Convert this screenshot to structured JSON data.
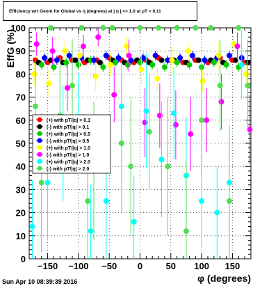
{
  "header": {
    "title": "Efficiency wrt Geom for Global vs η (degrees) at | η | <= 1.0 at pT > 0.11",
    "timestamp": "Sun Apr 10 08:39:39 2016"
  },
  "chart_data": {
    "type": "scatter",
    "title": "Efficiency wrt Geom for Global vs η (degrees) at | η | <= 1.0 at pT > 0.11",
    "xlabel": "φ (degrees)",
    "ylabel": "EffG (%)",
    "xlim": [
      -180,
      180
    ],
    "ylim": [
      0,
      100
    ],
    "xticks": [
      -150,
      -100,
      -50,
      0,
      50,
      100,
      150
    ],
    "yticks": [
      0,
      10,
      20,
      30,
      40,
      50,
      60,
      70,
      80,
      90,
      100
    ],
    "grid": true,
    "legend_position": "left-middle",
    "series": [
      {
        "name": "(+) with pT/|q| > 0.1",
        "color": "#ff0000",
        "marker": "circle",
        "x": [
          -170,
          -150,
          -130,
          -110,
          -90,
          -70,
          -50,
          -30,
          -10,
          10,
          30,
          50,
          70,
          90,
          110,
          130,
          150,
          170
        ],
        "y": [
          86,
          85,
          87,
          86,
          85,
          86,
          87,
          86,
          85,
          86,
          87,
          86,
          85,
          86,
          85,
          87,
          86,
          85
        ],
        "err": [
          1,
          1,
          1,
          1,
          1,
          1,
          1,
          1,
          1,
          1,
          1,
          1,
          1,
          1,
          1,
          1,
          1,
          1
        ]
      },
      {
        "name": "(-) with pT/|q| > 0.1",
        "color": "#000000",
        "marker": "circle",
        "x": [
          -165,
          -145,
          -125,
          -105,
          -85,
          -65,
          -45,
          -25,
          -5,
          15,
          35,
          55,
          75,
          95,
          115,
          135,
          155,
          175
        ],
        "y": [
          85,
          86,
          85,
          86,
          86,
          85,
          86,
          85,
          86,
          85,
          86,
          86,
          85,
          86,
          86,
          85,
          86,
          85
        ],
        "err": [
          1,
          1,
          1,
          1,
          1,
          1,
          1,
          1,
          1,
          1,
          1,
          1,
          1,
          1,
          1,
          1,
          1,
          1
        ]
      },
      {
        "name": "(+) with pT/|q| > 0.5",
        "color": "#00cc00",
        "marker": "circle",
        "x": [
          -160,
          -140,
          -120,
          -100,
          -80,
          -60,
          -40,
          -20,
          0,
          20,
          40,
          60,
          80,
          100,
          120,
          140,
          160
        ],
        "y": [
          84,
          83,
          85,
          84,
          86,
          83,
          85,
          84,
          85,
          84,
          83,
          85,
          84,
          83,
          85,
          84,
          83
        ],
        "err": [
          2,
          2,
          2,
          2,
          2,
          2,
          2,
          2,
          2,
          2,
          2,
          2,
          2,
          2,
          2,
          2,
          2
        ]
      },
      {
        "name": "(-) with pT/|q| > 0.5",
        "color": "#0000ff",
        "marker": "circle",
        "x": [
          -155,
          -135,
          -115,
          -95,
          -75,
          -55,
          -35,
          -15,
          5,
          25,
          45,
          65,
          85,
          105,
          125,
          145,
          165
        ],
        "y": [
          87,
          86,
          88,
          87,
          86,
          88,
          87,
          86,
          87,
          88,
          86,
          87,
          88,
          86,
          87,
          88,
          87
        ],
        "err": [
          2,
          2,
          2,
          2,
          2,
          2,
          2,
          2,
          2,
          2,
          2,
          2,
          2,
          2,
          2,
          2,
          2
        ]
      },
      {
        "name": "(+) with pT/|q| > 1.0",
        "color": "#ffff00",
        "marker": "circle",
        "x": [
          -172,
          -148,
          -122,
          -98,
          -72,
          -48,
          -22,
          2,
          28,
          52,
          78,
          102,
          128,
          152,
          172
        ],
        "y": [
          80,
          76,
          90,
          88,
          79,
          84,
          92,
          82,
          78,
          86,
          90,
          77,
          88,
          93,
          80
        ],
        "err": [
          5,
          6,
          4,
          5,
          6,
          5,
          4,
          6,
          5,
          6,
          4,
          5,
          6,
          4,
          5
        ]
      },
      {
        "name": "(-) with pT/|q| > 1.0",
        "color": "#ff00ff",
        "marker": "circle",
        "x": [
          -168,
          -142,
          -118,
          -92,
          -68,
          -42,
          -18,
          8,
          32,
          58,
          82,
          108,
          132,
          158,
          178
        ],
        "y": [
          93,
          90,
          74,
          92,
          96,
          71,
          88,
          59,
          62,
          58,
          54,
          60,
          68,
          92,
          56
        ],
        "err": [
          5,
          6,
          10,
          5,
          4,
          12,
          7,
          15,
          14,
          15,
          16,
          14,
          12,
          6,
          15
        ]
      },
      {
        "name": "(+) with pT/|q| > 2.0",
        "color": "#00ffff",
        "marker": "circle",
        "x": [
          -175,
          -150,
          -125,
          -100,
          -80,
          -55,
          -30,
          -10,
          10,
          35,
          55,
          75,
          100,
          125,
          145,
          165
        ],
        "y": [
          14,
          33,
          50,
          60,
          12,
          25,
          66,
          16,
          64,
          43,
          63,
          36,
          25,
          20,
          33,
          84
        ],
        "err": [
          20,
          25,
          25,
          20,
          20,
          25,
          20,
          20,
          25,
          25,
          20,
          25,
          20,
          20,
          25,
          15
        ]
      },
      {
        "name": "(-) with pT/|q| > 2.0",
        "color": "#55dd55",
        "marker": "circle",
        "x": [
          -170,
          -160,
          -145,
          -130,
          -110,
          -95,
          -85,
          -75,
          -60,
          -45,
          -30,
          -15,
          0,
          15,
          30,
          45,
          60,
          75,
          90,
          100,
          115,
          130,
          145,
          160,
          175
        ],
        "y": [
          66,
          33,
          100,
          62,
          75,
          100,
          25,
          38,
          100,
          100,
          50,
          40,
          100,
          55,
          100,
          40,
          100,
          12,
          100,
          60,
          100,
          75,
          25,
          100,
          75
        ],
        "err": [
          20,
          30,
          0,
          25,
          20,
          0,
          30,
          30,
          0,
          0,
          30,
          30,
          0,
          25,
          0,
          30,
          0,
          30,
          0,
          25,
          0,
          20,
          30,
          0,
          20
        ]
      }
    ]
  }
}
